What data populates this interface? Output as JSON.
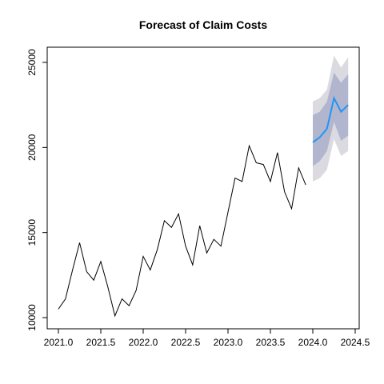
{
  "chart_data": {
    "type": "line",
    "title": "Forecast of Claim Costs",
    "xlabel": "",
    "ylabel": "",
    "xlim": [
      2021.0,
      2024.5
    ],
    "ylim": [
      10000,
      25000
    ],
    "x_ticks": [
      2021.0,
      2021.5,
      2022.0,
      2022.5,
      2023.0,
      2023.5,
      2024.0,
      2024.5
    ],
    "x_tick_labels": [
      "2021.0",
      "2021.5",
      "2022.0",
      "2022.5",
      "2023.0",
      "2023.5",
      "2024.0",
      "2024.5"
    ],
    "y_ticks": [
      10000,
      15000,
      20000,
      25000
    ],
    "y_tick_labels": [
      "10000",
      "15000",
      "20000",
      "25000"
    ],
    "grid": false,
    "colors": {
      "history": "#000000",
      "forecast": "#2196F3",
      "band_80": "#B1B5CE",
      "band_95": "#DADAE0"
    },
    "history": {
      "x": [
        2021.0,
        2021.0833,
        2021.1667,
        2021.25,
        2021.3333,
        2021.4167,
        2021.5,
        2021.5833,
        2021.6667,
        2021.75,
        2021.8333,
        2021.9167,
        2022.0,
        2022.0833,
        2022.1667,
        2022.25,
        2022.3333,
        2022.4167,
        2022.5,
        2022.5833,
        2022.6667,
        2022.75,
        2022.8333,
        2022.9167,
        2023.0,
        2023.0833,
        2023.1667,
        2023.25,
        2023.3333,
        2023.4167,
        2023.5,
        2023.5833,
        2023.6667,
        2023.75,
        2023.8333,
        2023.9167
      ],
      "y": [
        10500,
        11100,
        12800,
        14400,
        12700,
        12200,
        13300,
        11800,
        10100,
        11100,
        10700,
        11600,
        13600,
        12800,
        14000,
        15700,
        15300,
        16100,
        14200,
        13100,
        15400,
        13800,
        14600,
        14200,
        16200,
        18200,
        18000,
        20100,
        19100,
        19000,
        18000,
        19700,
        17400,
        16400,
        18800,
        17800
      ]
    },
    "forecast": {
      "x": [
        2024.0,
        2024.0833,
        2024.1667,
        2024.25,
        2024.3333,
        2024.4167
      ],
      "mean": [
        20300,
        20600,
        21100,
        22900,
        22100,
        22500
      ],
      "lo80": [
        18900,
        19200,
        19800,
        21500,
        20400,
        20700
      ],
      "hi80": [
        21900,
        22100,
        22700,
        24400,
        23800,
        24300
      ],
      "lo95": [
        18000,
        18200,
        18700,
        20500,
        19500,
        19800
      ],
      "hi95": [
        22700,
        22900,
        23400,
        25400,
        24700,
        25300
      ]
    }
  }
}
